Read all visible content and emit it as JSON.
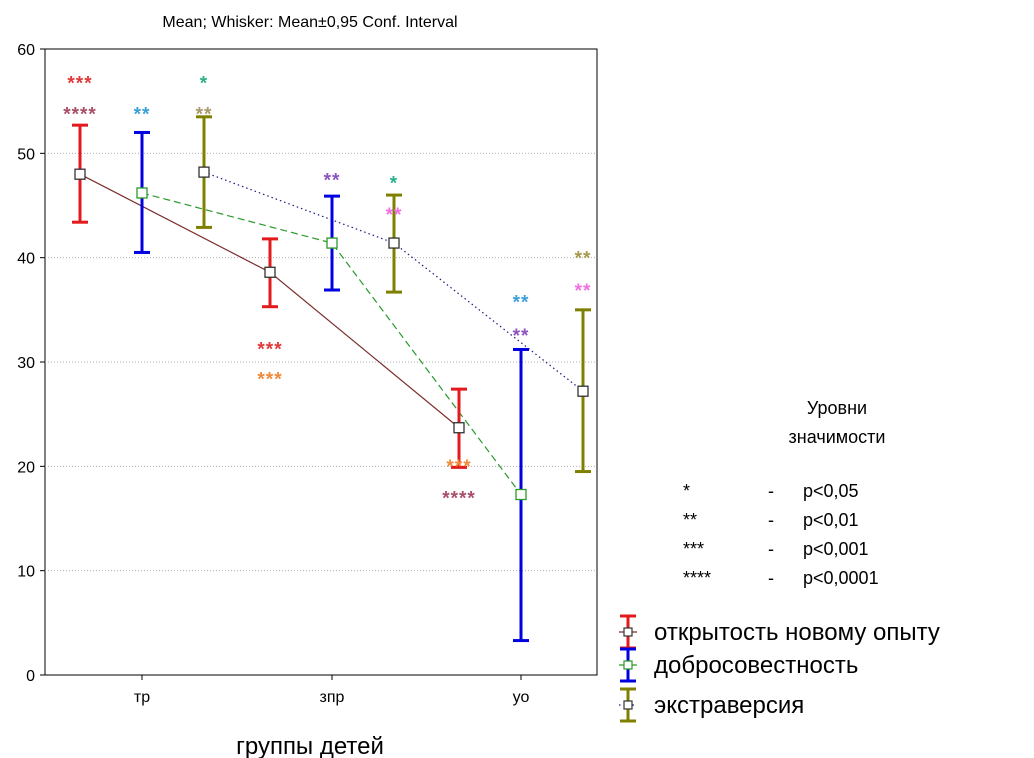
{
  "chart_data": {
    "type": "line",
    "title": "Mean; Whisker: Mean±0,95 Conf. Interval",
    "xlabel": "группы детей",
    "ylabel": "",
    "ylim": [
      0,
      60
    ],
    "yticks": [
      0,
      10,
      20,
      30,
      40,
      50,
      60
    ],
    "categories": [
      "тр",
      "зпр",
      "уо"
    ],
    "grid": true,
    "series": [
      {
        "name": "открытость новому опыту",
        "color": "#e31a1c",
        "line_color": "#7b2e2e",
        "line_style": "solid",
        "offset": -1,
        "mean": [
          48.0,
          38.6,
          23.7
        ],
        "lower": [
          43.4,
          35.3,
          19.9
        ],
        "upper": [
          52.7,
          41.8,
          27.4
        ]
      },
      {
        "name": "добросовестность",
        "color": "#0000e0",
        "line_color": "#2a9a2a",
        "line_style": "dashed",
        "offset": 0,
        "mean": [
          46.2,
          41.4,
          17.3
        ],
        "lower": [
          40.5,
          36.9,
          3.3
        ],
        "upper": [
          52.0,
          45.9,
          31.2
        ]
      },
      {
        "name": "экстраверсия",
        "color": "#808000",
        "line_color": "#1a1a80",
        "line_style": "dotted",
        "offset": 1,
        "mean": [
          48.2,
          41.4,
          27.2
        ],
        "lower": [
          42.9,
          36.7,
          19.5
        ],
        "upper": [
          53.5,
          46.0,
          35.0
        ]
      }
    ],
    "annotations": [
      {
        "text": "***",
        "color": "#e03a3a",
        "category": 0,
        "offset": -1,
        "y": 57
      },
      {
        "text": "****",
        "color": "#a8506a",
        "category": 0,
        "offset": -1,
        "y": 54
      },
      {
        "text": "**",
        "color": "#3c9fd6",
        "category": 0,
        "offset": 0,
        "y": 54
      },
      {
        "text": "*",
        "color": "#2bb08a",
        "category": 0,
        "offset": 1,
        "y": 57
      },
      {
        "text": "**",
        "color": "#a89a6a",
        "category": 0,
        "offset": 1,
        "y": 54
      },
      {
        "text": "**",
        "color": "#8a55c0",
        "category": 1,
        "offset": 0,
        "y": 47.7
      },
      {
        "text": "*",
        "color": "#2bb08a",
        "category": 1,
        "offset": 1,
        "y": 47.4
      },
      {
        "text": "**",
        "color": "#f070e0",
        "category": 1,
        "offset": 1,
        "y": 44.4
      },
      {
        "text": "***",
        "color": "#e03a3a",
        "category": 1,
        "offset": -1,
        "y": 31.5
      },
      {
        "text": "***",
        "color": "#f08a3a",
        "category": 1,
        "offset": -1,
        "y": 28.6
      },
      {
        "text": "**",
        "color": "#3c9fd6",
        "category": 2,
        "offset": 0,
        "y": 36
      },
      {
        "text": "**",
        "color": "#8a55c0",
        "category": 2,
        "offset": 0,
        "y": 32.8
      },
      {
        "text": "**",
        "color": "#a89a50",
        "category": 2,
        "offset": 1,
        "y": 40.2
      },
      {
        "text": "**",
        "color": "#f070e0",
        "category": 2,
        "offset": 1,
        "y": 37.1
      },
      {
        "text": "***",
        "color": "#f08a3a",
        "category": 2,
        "offset": -1,
        "y": 20.2
      },
      {
        "text": "****",
        "color": "#a8506a",
        "category": 2,
        "offset": -1,
        "y": 17.2
      }
    ]
  },
  "significance_legend": {
    "title_line1": "Уровни",
    "title_line2": "значимости",
    "rows": [
      {
        "stars": "*",
        "dash": "-",
        "p": "p<0,05"
      },
      {
        "stars": "**",
        "dash": "-",
        "p": "p<0,01"
      },
      {
        "stars": "***",
        "dash": "-",
        "p": "p<0,001"
      },
      {
        "stars": "****",
        "dash": "-",
        "p": "p<0,0001"
      }
    ]
  }
}
